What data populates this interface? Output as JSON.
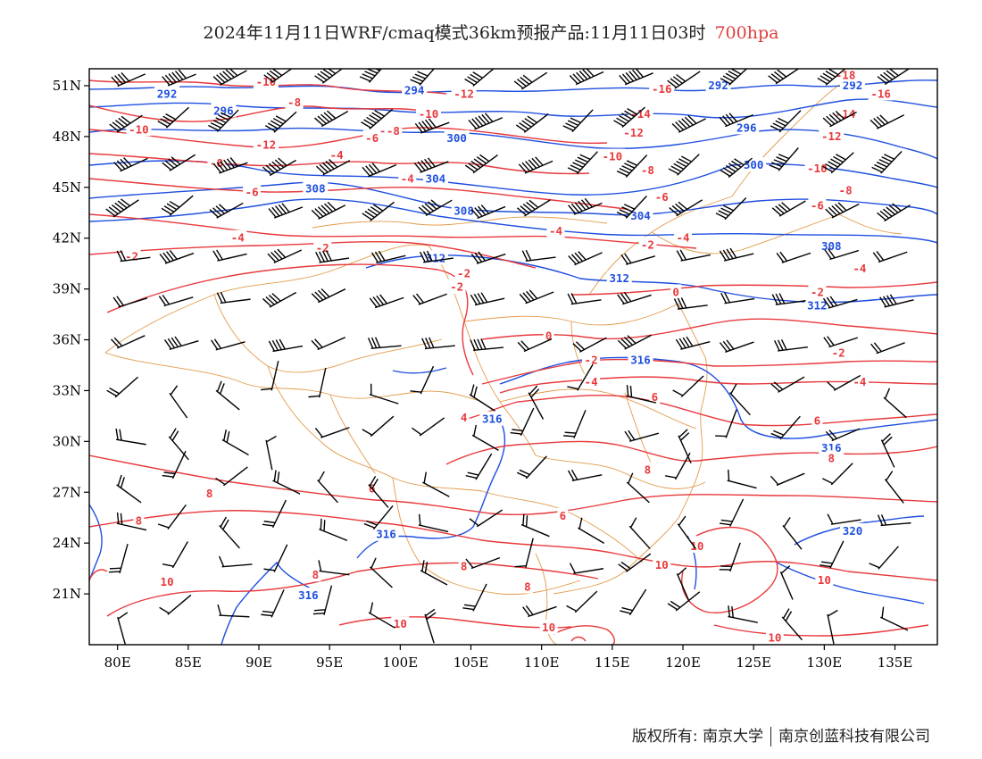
{
  "title": {
    "main": "2024年11月11日WRF/cmaq模式36km预报产品:11月11日03时",
    "level": "700hpa"
  },
  "colors": {
    "temperature": "#e8393c",
    "geopotential": "#1f4fe0",
    "border": "#e29a4a",
    "wind": "#000000"
  },
  "axes": {
    "lon_range": [
      78,
      138
    ],
    "lat_range": [
      18,
      52
    ],
    "lon_ticks": [
      "80E",
      "85E",
      "90E",
      "95E",
      "100E",
      "105E",
      "110E",
      "115E",
      "120E",
      "125E",
      "130E",
      "135E"
    ],
    "lon_values": [
      80,
      85,
      90,
      95,
      100,
      105,
      110,
      115,
      120,
      125,
      130,
      135
    ],
    "lat_ticks": [
      "21N",
      "24N",
      "27N",
      "30N",
      "33N",
      "36N",
      "39N",
      "42N",
      "45N",
      "48N",
      "51N"
    ],
    "lat_values": [
      21,
      24,
      27,
      30,
      33,
      36,
      39,
      42,
      45,
      48,
      51
    ]
  },
  "geopotential_labels": [
    {
      "text": "292",
      "lon": 83.5,
      "lat": 50.5
    },
    {
      "text": "296",
      "lon": 87.5,
      "lat": 49.5
    },
    {
      "text": "294",
      "lon": 101,
      "lat": 50.7
    },
    {
      "text": "300",
      "lon": 104,
      "lat": 47.9
    },
    {
      "text": "304",
      "lon": 102.5,
      "lat": 45.5
    },
    {
      "text": "308",
      "lon": 94,
      "lat": 44.9
    },
    {
      "text": "308",
      "lon": 104.5,
      "lat": 43.6
    },
    {
      "text": "304",
      "lon": 117,
      "lat": 43.3
    },
    {
      "text": "312",
      "lon": 102.5,
      "lat": 40.8
    },
    {
      "text": "312",
      "lon": 115.5,
      "lat": 39.6
    },
    {
      "text": "292",
      "lon": 122.5,
      "lat": 51.0
    },
    {
      "text": "292",
      "lon": 132,
      "lat": 51.0
    },
    {
      "text": "296",
      "lon": 124.5,
      "lat": 48.5
    },
    {
      "text": "300",
      "lon": 125,
      "lat": 46.3
    },
    {
      "text": "308",
      "lon": 130.5,
      "lat": 41.5
    },
    {
      "text": "312",
      "lon": 129.5,
      "lat": 38.0
    },
    {
      "text": "316",
      "lon": 117,
      "lat": 34.8
    },
    {
      "text": "316",
      "lon": 106.5,
      "lat": 31.3
    },
    {
      "text": "316",
      "lon": 130.5,
      "lat": 29.6
    },
    {
      "text": "316",
      "lon": 99,
      "lat": 24.5
    },
    {
      "text": "316",
      "lon": 93.5,
      "lat": 20.9
    },
    {
      "text": "320",
      "lon": 132,
      "lat": 24.7
    }
  ],
  "temperature_labels": [
    {
      "text": "-10",
      "lon": 90.5,
      "lat": 51.2
    },
    {
      "text": "-8",
      "lon": 92.5,
      "lat": 50.0
    },
    {
      "text": "-12",
      "lon": 104.5,
      "lat": 50.5
    },
    {
      "text": "-10",
      "lon": 102,
      "lat": 49.3
    },
    {
      "text": "-10",
      "lon": 81.5,
      "lat": 48.4
    },
    {
      "text": "-12",
      "lon": 90.5,
      "lat": 47.5
    },
    {
      "text": "-6",
      "lon": 98,
      "lat": 47.9
    },
    {
      "text": "-8",
      "lon": 99.5,
      "lat": 48.3
    },
    {
      "text": "-4",
      "lon": 95.5,
      "lat": 46.9
    },
    {
      "text": "-8",
      "lon": 87,
      "lat": 46.4
    },
    {
      "text": "-4",
      "lon": 100.5,
      "lat": 45.5
    },
    {
      "text": "-6",
      "lon": 89.5,
      "lat": 44.7
    },
    {
      "text": "-4",
      "lon": 88.5,
      "lat": 42.0
    },
    {
      "text": "-2",
      "lon": 81,
      "lat": 40.9
    },
    {
      "text": "-2",
      "lon": 94.5,
      "lat": 41.4
    },
    {
      "text": "-4",
      "lon": 111,
      "lat": 42.4
    },
    {
      "text": "-2",
      "lon": 104.5,
      "lat": 39.9
    },
    {
      "text": "-2",
      "lon": 104,
      "lat": 39.1
    },
    {
      "text": "-16",
      "lon": 118.5,
      "lat": 50.8
    },
    {
      "text": "-14",
      "lon": 117,
      "lat": 49.3
    },
    {
      "text": "-12",
      "lon": 116.5,
      "lat": 48.2
    },
    {
      "text": "-10",
      "lon": 115,
      "lat": 46.8
    },
    {
      "text": "-8",
      "lon": 117.5,
      "lat": 46.0
    },
    {
      "text": "-6",
      "lon": 118.5,
      "lat": 44.4
    },
    {
      "text": "-2",
      "lon": 117.5,
      "lat": 41.6
    },
    {
      "text": "-4",
      "lon": 120,
      "lat": 42.0
    },
    {
      "text": "0",
      "lon": 119.5,
      "lat": 38.8
    },
    {
      "text": "-16",
      "lon": 134,
      "lat": 50.5
    },
    {
      "text": "-18",
      "lon": 131.5,
      "lat": 51.6
    },
    {
      "text": "-14",
      "lon": 131.5,
      "lat": 49.3
    },
    {
      "text": "-12",
      "lon": 130.5,
      "lat": 48.0
    },
    {
      "text": "-10",
      "lon": 129.5,
      "lat": 46.1
    },
    {
      "text": "-8",
      "lon": 131.5,
      "lat": 44.8
    },
    {
      "text": "-6",
      "lon": 129.5,
      "lat": 43.9
    },
    {
      "text": "-4",
      "lon": 132.5,
      "lat": 40.2
    },
    {
      "text": "-2",
      "lon": 129.5,
      "lat": 38.8
    },
    {
      "text": "0",
      "lon": 110.5,
      "lat": 36.2
    },
    {
      "text": "-2",
      "lon": 113.5,
      "lat": 34.8
    },
    {
      "text": "-4",
      "lon": 113.5,
      "lat": 33.5
    },
    {
      "text": "-2",
      "lon": 131,
      "lat": 35.2
    },
    {
      "text": "-4",
      "lon": 132.5,
      "lat": 33.5
    },
    {
      "text": "4",
      "lon": 104.5,
      "lat": 31.4
    },
    {
      "text": "6",
      "lon": 118,
      "lat": 32.6
    },
    {
      "text": "6",
      "lon": 129.5,
      "lat": 31.2
    },
    {
      "text": "8",
      "lon": 130.5,
      "lat": 29.0
    },
    {
      "text": "8",
      "lon": 117.5,
      "lat": 28.3
    },
    {
      "text": "6",
      "lon": 98,
      "lat": 27.2
    },
    {
      "text": "6",
      "lon": 111.5,
      "lat": 25.6
    },
    {
      "text": "8",
      "lon": 86.5,
      "lat": 26.9
    },
    {
      "text": "8",
      "lon": 81.5,
      "lat": 25.3
    },
    {
      "text": "10",
      "lon": 121,
      "lat": 23.8
    },
    {
      "text": "10",
      "lon": 118.5,
      "lat": 22.7
    },
    {
      "text": "10",
      "lon": 130,
      "lat": 21.8
    },
    {
      "text": "8",
      "lon": 104.5,
      "lat": 22.6
    },
    {
      "text": "8",
      "lon": 94,
      "lat": 22.1
    },
    {
      "text": "10",
      "lon": 83.5,
      "lat": 21.7
    },
    {
      "text": "8",
      "lon": 109,
      "lat": 21.4
    },
    {
      "text": "10",
      "lon": 100,
      "lat": 19.2
    },
    {
      "text": "10",
      "lon": 110.5,
      "lat": 19.0
    },
    {
      "text": "10",
      "lon": 126.5,
      "lat": 18.4
    }
  ],
  "footer": {
    "left": "版权所有: 南京大学",
    "right": "南京创蓝科技有限公司"
  }
}
